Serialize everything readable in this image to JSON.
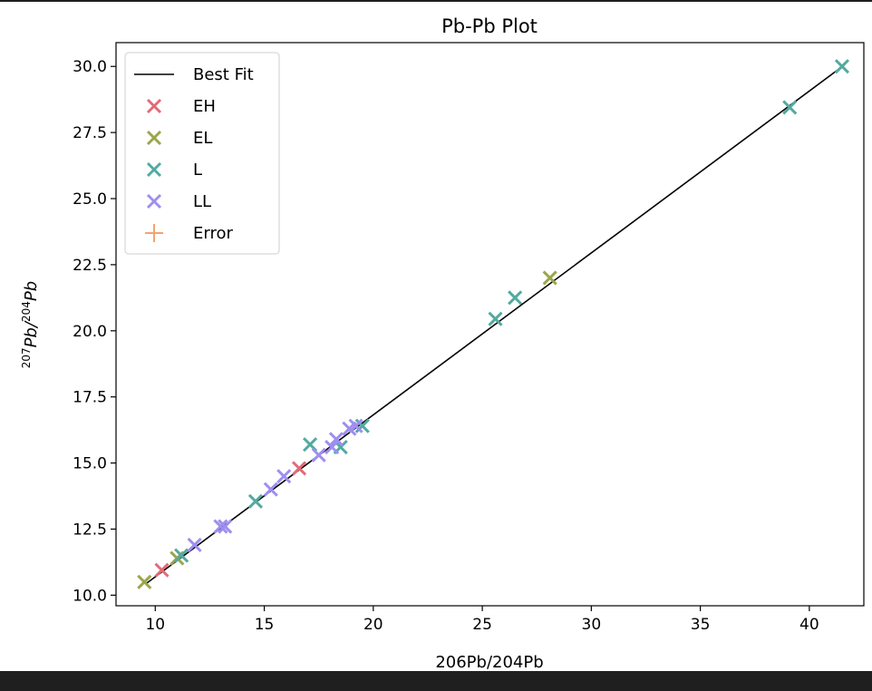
{
  "chart_data": {
    "type": "scatter",
    "title": "Pb-Pb Plot",
    "xlabel": "206Pb/204Pb",
    "ylabel_base_1": "207",
    "ylabel_text_1": "Pb/",
    "ylabel_base_2": "204",
    "ylabel_text_2": "Pb",
    "xlim": [
      8.2,
      42.5
    ],
    "ylim": [
      9.6,
      30.9
    ],
    "xticks": [
      10,
      15,
      20,
      25,
      30,
      35,
      40
    ],
    "yticks": [
      10.0,
      12.5,
      15.0,
      17.5,
      20.0,
      22.5,
      25.0,
      27.5,
      30.0
    ],
    "grid": false,
    "legend_position": "top-left",
    "best_fit": {
      "name": "Best Fit",
      "color": "#000000",
      "x": [
        9.6,
        41.6
      ],
      "y": [
        10.45,
        30.05
      ]
    },
    "error": {
      "name": "Error",
      "color": "#f5a36e",
      "marker": "plus"
    },
    "series": [
      {
        "name": "EH",
        "color": "#e06c78",
        "marker": "x",
        "points": [
          [
            10.3,
            10.95
          ],
          [
            16.6,
            14.8
          ]
        ]
      },
      {
        "name": "EL",
        "color": "#9ba64a",
        "marker": "x",
        "points": [
          [
            9.5,
            10.5
          ],
          [
            11.0,
            11.4
          ],
          [
            28.1,
            22.0
          ]
        ]
      },
      {
        "name": "L",
        "color": "#52aaa1",
        "marker": "x",
        "points": [
          [
            11.2,
            11.5
          ],
          [
            14.6,
            13.55
          ],
          [
            17.1,
            15.7
          ],
          [
            18.5,
            15.6
          ],
          [
            19.5,
            16.4
          ],
          [
            25.6,
            20.45
          ],
          [
            26.5,
            21.25
          ],
          [
            39.1,
            28.45
          ],
          [
            41.5,
            30.0
          ]
        ]
      },
      {
        "name": "LL",
        "color": "#9f8ef0",
        "marker": "x",
        "points": [
          [
            11.8,
            11.9
          ],
          [
            13.0,
            12.6
          ],
          [
            13.2,
            12.6
          ],
          [
            15.3,
            14.0
          ],
          [
            15.9,
            14.5
          ],
          [
            17.5,
            15.3
          ],
          [
            18.1,
            15.6
          ],
          [
            18.3,
            15.9
          ],
          [
            18.9,
            16.3
          ],
          [
            19.2,
            16.4
          ]
        ]
      }
    ]
  }
}
